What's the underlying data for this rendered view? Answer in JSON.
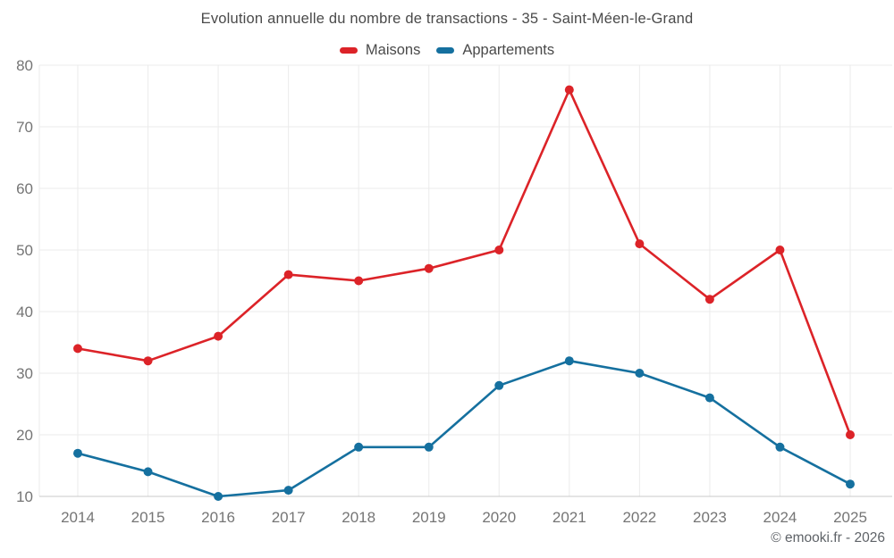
{
  "chart_data": {
    "type": "line",
    "title": "Evolution annuelle du nombre de transactions - 35 - Saint-Méen-le-Grand",
    "categories": [
      "2014",
      "2015",
      "2016",
      "2017",
      "2018",
      "2019",
      "2020",
      "2021",
      "2022",
      "2023",
      "2024",
      "2025"
    ],
    "series": [
      {
        "name": "Maisons",
        "color": "#dc2328",
        "values": [
          34,
          32,
          36,
          46,
          45,
          47,
          50,
          76,
          51,
          42,
          50,
          20
        ]
      },
      {
        "name": "Appartements",
        "color": "#15709f",
        "values": [
          17,
          14,
          10,
          11,
          18,
          18,
          28,
          32,
          30,
          26,
          18,
          12
        ]
      }
    ],
    "xlabel": "",
    "ylabel": "",
    "ylim": [
      10,
      80
    ],
    "ytick_step": 10,
    "grid": true,
    "legend_position": "top",
    "marker": "circle"
  },
  "colors": {
    "grid": "#ebebeb",
    "axis_line": "#c9c9c9",
    "tick_label": "#757575",
    "title_text": "#4a4a4a"
  },
  "footer": {
    "copyright": "© emooki.fr - 2026"
  }
}
